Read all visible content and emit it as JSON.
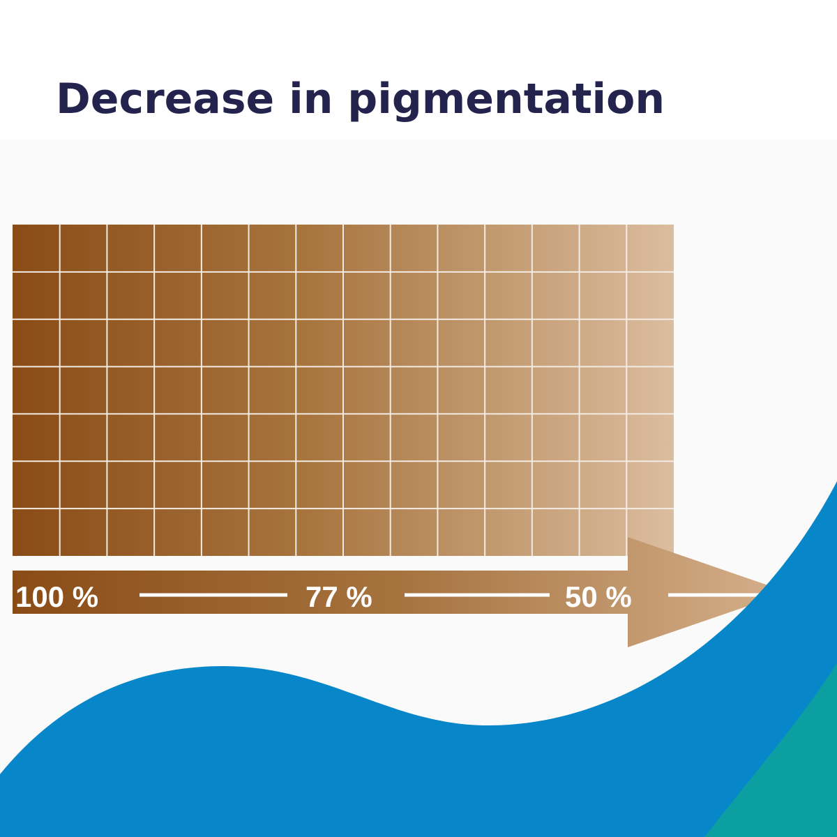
{
  "header": {
    "title": "Decrease in pigmentation"
  },
  "scale": {
    "labels": [
      "100 %",
      "77 %",
      "50 %"
    ]
  }
}
